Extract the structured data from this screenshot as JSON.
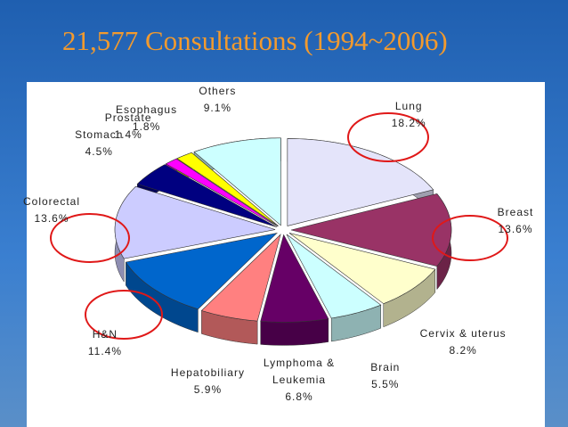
{
  "chart_data": {
    "type": "pie",
    "title": "21,577 Consultations (1994~2006)",
    "categories": [
      "Lung",
      "Breast",
      "Cervix & uterus",
      "Brain",
      "Lymphoma & Leukemia",
      "Hepatobiliary",
      "H&N",
      "Colorectal",
      "Stomach",
      "Prostate",
      "Esophagus",
      "Others"
    ],
    "values": [
      18.2,
      13.6,
      8.2,
      5.5,
      6.8,
      5.9,
      11.4,
      13.6,
      4.5,
      1.4,
      1.8,
      9.1
    ],
    "value_labels": [
      "18.2%",
      "13.6%",
      "8.2%",
      "5.5%",
      "6.8%",
      "5.9%",
      "11.4%",
      "13.6%",
      "4.5%",
      "1.4%",
      "1.8%",
      "9.1%"
    ],
    "colors": [
      "#e4e4fa",
      "#993366",
      "#ffffcc",
      "#ccffff",
      "#660066",
      "#ff8080",
      "#0066cc",
      "#ccccff",
      "#000080",
      "#ff00ff",
      "#ffff00",
      "#ccffff"
    ]
  }
}
